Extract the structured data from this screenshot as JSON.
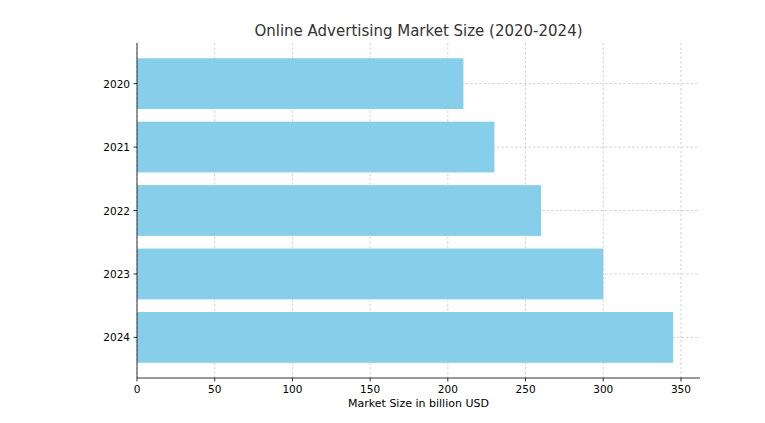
{
  "chart_data": {
    "type": "bar",
    "orientation": "horizontal",
    "title": "Online Advertising Market Size (2020-2024)",
    "x_label": "Market Size in billion USD",
    "categories": [
      "2020",
      "2021",
      "2022",
      "2023",
      "2024"
    ],
    "values": [
      210,
      230,
      260,
      300,
      345
    ],
    "color": "#87ceeb",
    "xlim": [
      0,
      362.25
    ],
    "xticks": [
      0,
      50,
      100,
      150,
      200,
      250,
      300,
      350
    ],
    "grid": true
  }
}
